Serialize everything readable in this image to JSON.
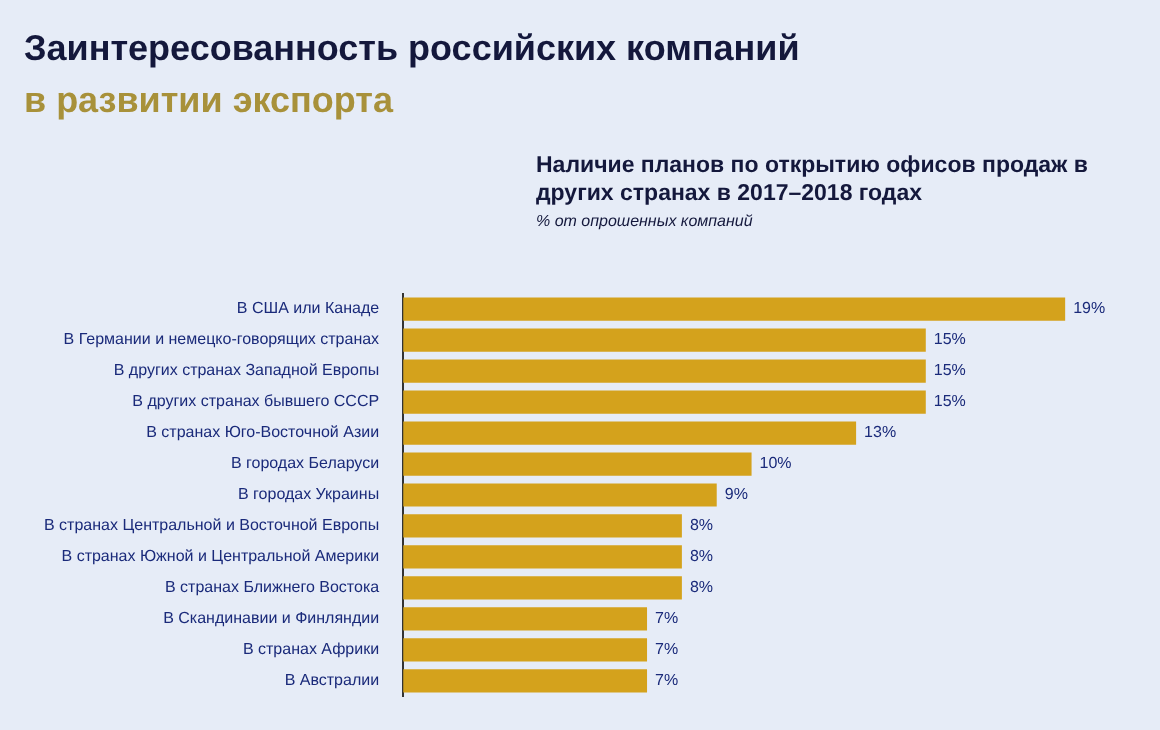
{
  "chart_data": {
    "type": "bar",
    "orientation": "horizontal",
    "title": "Наличие планов по открытию офисов продаж в других странах в 2017–2018 годах",
    "subtitle": "% от опрошенных компаний",
    "annotations": [
      "Заинтересованность российских компаний",
      "в развитии экспорта"
    ],
    "categories": [
      "В США или Канаде",
      "В Германии и немецко-говорящих странах",
      "В других странах Западной Европы",
      "В других странах бывшего СССР",
      "В странах Юго-Восточной Азии",
      "В городах Беларуси",
      "В городах Украины",
      "В странах Центральной и Восточной Европы",
      "В странах Южной и Центральной Америки",
      "В странах Ближнего Востока",
      "В Скандинавии и Финляндии",
      "В странах Африки",
      "В Австралии"
    ],
    "values": [
      19,
      15,
      15,
      15,
      13,
      10,
      9,
      8,
      8,
      8,
      7,
      7,
      7
    ],
    "value_labels": [
      "19%",
      "15%",
      "15%",
      "15%",
      "13%",
      "10%",
      "9%",
      "8%",
      "8%",
      "8%",
      "7%",
      "7%",
      "7%"
    ],
    "color": "#d4a21c",
    "tick_labels": "y",
    "grid": false,
    "legend": false
  }
}
